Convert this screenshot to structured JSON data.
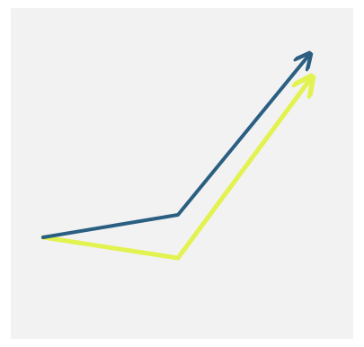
{
  "image": {
    "background_color": "#f2f2f2",
    "icon_name": "trend-arrows-icon",
    "arrows": [
      {
        "name": "blue-trend-arrow",
        "color": "#2b5f82"
      },
      {
        "name": "yellow-trend-arrow",
        "color": "#e2f24f"
      }
    ]
  }
}
